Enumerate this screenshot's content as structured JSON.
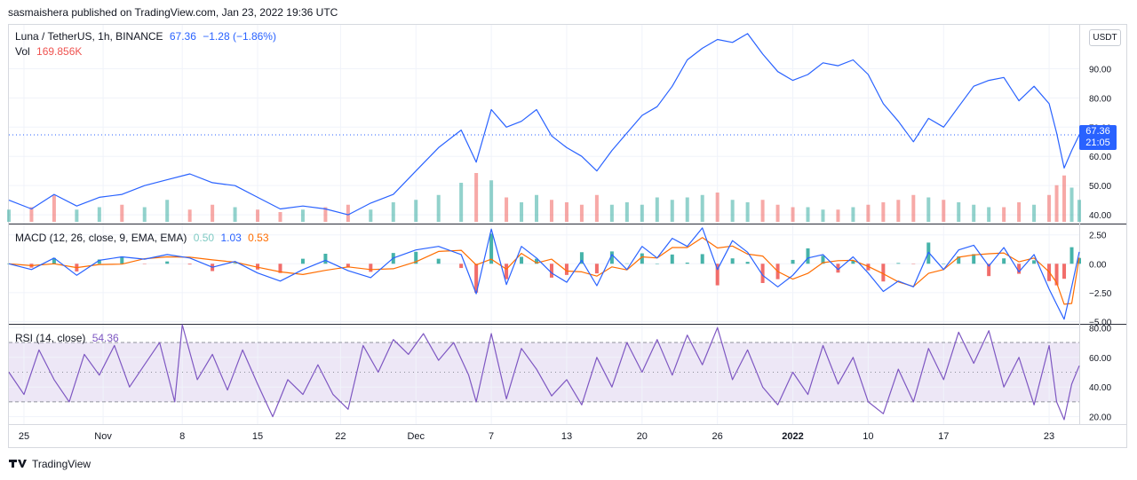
{
  "header": {
    "publish_line": "sasmaishera published on TradingView.com, Jan 23, 2022 19:36 UTC"
  },
  "price_legend": {
    "symbol": "Luna / TetherUS, 1h, BINANCE",
    "last": "67.36",
    "change": "−1.28 (−1.86%)"
  },
  "vol_legend": {
    "label": "Vol",
    "value": "169.856K"
  },
  "macd_legend": {
    "label": "MACD (12, 26, close, 9, EMA, EMA)",
    "hist": "0.50",
    "macd": "1.03",
    "signal": "0.53"
  },
  "rsi_legend": {
    "label": "RSI (14, close)",
    "value": "54.36"
  },
  "currency_button": "USDT",
  "price_tag": {
    "price": "67.36",
    "countdown": "21:05"
  },
  "footer": {
    "logo_icon": "tradingview-logo-icon",
    "brand": "TradingView"
  },
  "colors": {
    "price_line": "#2962ff",
    "macd_line": "#2962ff",
    "signal_line": "#ff6d00",
    "rsi_line": "#7e57c2",
    "up": "#26a69a",
    "down": "#ef5350",
    "rsi_band": "#ede7f6"
  },
  "chart_data": {
    "type": "line",
    "title": "Luna / TetherUS, 1h, BINANCE",
    "x_ticks": [
      "25",
      "Nov",
      "8",
      "15",
      "22",
      "Dec",
      "7",
      "13",
      "20",
      "26",
      "2022",
      "10",
      "17",
      "23"
    ],
    "price": {
      "y_ticks": [
        "90.00",
        "80.00",
        "70.00",
        "60.00",
        "50.00",
        "40.00"
      ],
      "ylim": [
        37,
        105
      ],
      "last": 67.36,
      "series": [
        {
          "x": 0,
          "y": 45
        },
        {
          "x": 3,
          "y": 42
        },
        {
          "x": 6,
          "y": 47
        },
        {
          "x": 9,
          "y": 43
        },
        {
          "x": 12,
          "y": 46
        },
        {
          "x": 15,
          "y": 47
        },
        {
          "x": 18,
          "y": 50
        },
        {
          "x": 21,
          "y": 52
        },
        {
          "x": 24,
          "y": 54
        },
        {
          "x": 27,
          "y": 51
        },
        {
          "x": 30,
          "y": 50
        },
        {
          "x": 33,
          "y": 46
        },
        {
          "x": 36,
          "y": 42
        },
        {
          "x": 39,
          "y": 43
        },
        {
          "x": 42,
          "y": 42
        },
        {
          "x": 45,
          "y": 40
        },
        {
          "x": 48,
          "y": 44
        },
        {
          "x": 51,
          "y": 47
        },
        {
          "x": 54,
          "y": 55
        },
        {
          "x": 57,
          "y": 63
        },
        {
          "x": 60,
          "y": 69
        },
        {
          "x": 62,
          "y": 58
        },
        {
          "x": 64,
          "y": 76
        },
        {
          "x": 66,
          "y": 70
        },
        {
          "x": 68,
          "y": 72
        },
        {
          "x": 70,
          "y": 76
        },
        {
          "x": 72,
          "y": 67
        },
        {
          "x": 74,
          "y": 63
        },
        {
          "x": 76,
          "y": 60
        },
        {
          "x": 78,
          "y": 55
        },
        {
          "x": 80,
          "y": 62
        },
        {
          "x": 82,
          "y": 68
        },
        {
          "x": 84,
          "y": 74
        },
        {
          "x": 86,
          "y": 77
        },
        {
          "x": 88,
          "y": 84
        },
        {
          "x": 90,
          "y": 93
        },
        {
          "x": 92,
          "y": 97
        },
        {
          "x": 94,
          "y": 100
        },
        {
          "x": 96,
          "y": 99
        },
        {
          "x": 98,
          "y": 102
        },
        {
          "x": 100,
          "y": 95
        },
        {
          "x": 102,
          "y": 89
        },
        {
          "x": 104,
          "y": 86
        },
        {
          "x": 106,
          "y": 88
        },
        {
          "x": 108,
          "y": 92
        },
        {
          "x": 110,
          "y": 91
        },
        {
          "x": 112,
          "y": 93
        },
        {
          "x": 114,
          "y": 88
        },
        {
          "x": 116,
          "y": 78
        },
        {
          "x": 118,
          "y": 72
        },
        {
          "x": 120,
          "y": 65
        },
        {
          "x": 122,
          "y": 73
        },
        {
          "x": 124,
          "y": 70
        },
        {
          "x": 126,
          "y": 77
        },
        {
          "x": 128,
          "y": 84
        },
        {
          "x": 130,
          "y": 86
        },
        {
          "x": 132,
          "y": 87
        },
        {
          "x": 134,
          "y": 79
        },
        {
          "x": 136,
          "y": 84
        },
        {
          "x": 138,
          "y": 78
        },
        {
          "x": 139,
          "y": 68
        },
        {
          "x": 140,
          "y": 56
        },
        {
          "x": 141,
          "y": 62
        },
        {
          "x": 142,
          "y": 67.36
        }
      ]
    },
    "volume": {
      "last": "169.856K",
      "bars": [
        {
          "x": 0,
          "v": 0.25,
          "dir": "up"
        },
        {
          "x": 3,
          "v": 0.3,
          "dir": "down"
        },
        {
          "x": 6,
          "v": 0.55,
          "dir": "down"
        },
        {
          "x": 9,
          "v": 0.25,
          "dir": "up"
        },
        {
          "x": 12,
          "v": 0.3,
          "dir": "up"
        },
        {
          "x": 15,
          "v": 0.35,
          "dir": "down"
        },
        {
          "x": 18,
          "v": 0.3,
          "dir": "up"
        },
        {
          "x": 21,
          "v": 0.45,
          "dir": "up"
        },
        {
          "x": 24,
          "v": 0.25,
          "dir": "down"
        },
        {
          "x": 27,
          "v": 0.35,
          "dir": "down"
        },
        {
          "x": 30,
          "v": 0.3,
          "dir": "up"
        },
        {
          "x": 33,
          "v": 0.25,
          "dir": "down"
        },
        {
          "x": 36,
          "v": 0.2,
          "dir": "down"
        },
        {
          "x": 39,
          "v": 0.25,
          "dir": "up"
        },
        {
          "x": 42,
          "v": 0.3,
          "dir": "down"
        },
        {
          "x": 45,
          "v": 0.35,
          "dir": "down"
        },
        {
          "x": 48,
          "v": 0.25,
          "dir": "up"
        },
        {
          "x": 51,
          "v": 0.4,
          "dir": "up"
        },
        {
          "x": 54,
          "v": 0.45,
          "dir": "up"
        },
        {
          "x": 57,
          "v": 0.55,
          "dir": "up"
        },
        {
          "x": 60,
          "v": 0.8,
          "dir": "up"
        },
        {
          "x": 62,
          "v": 1.0,
          "dir": "down"
        },
        {
          "x": 64,
          "v": 0.85,
          "dir": "up"
        },
        {
          "x": 66,
          "v": 0.5,
          "dir": "down"
        },
        {
          "x": 68,
          "v": 0.4,
          "dir": "up"
        },
        {
          "x": 70,
          "v": 0.55,
          "dir": "up"
        },
        {
          "x": 72,
          "v": 0.45,
          "dir": "down"
        },
        {
          "x": 74,
          "v": 0.4,
          "dir": "down"
        },
        {
          "x": 76,
          "v": 0.35,
          "dir": "down"
        },
        {
          "x": 78,
          "v": 0.55,
          "dir": "down"
        },
        {
          "x": 80,
          "v": 0.35,
          "dir": "up"
        },
        {
          "x": 82,
          "v": 0.4,
          "dir": "up"
        },
        {
          "x": 84,
          "v": 0.35,
          "dir": "up"
        },
        {
          "x": 86,
          "v": 0.5,
          "dir": "up"
        },
        {
          "x": 88,
          "v": 0.45,
          "dir": "up"
        },
        {
          "x": 90,
          "v": 0.5,
          "dir": "up"
        },
        {
          "x": 92,
          "v": 0.55,
          "dir": "up"
        },
        {
          "x": 94,
          "v": 0.6,
          "dir": "down"
        },
        {
          "x": 96,
          "v": 0.45,
          "dir": "up"
        },
        {
          "x": 98,
          "v": 0.4,
          "dir": "up"
        },
        {
          "x": 100,
          "v": 0.45,
          "dir": "down"
        },
        {
          "x": 102,
          "v": 0.35,
          "dir": "down"
        },
        {
          "x": 104,
          "v": 0.3,
          "dir": "down"
        },
        {
          "x": 106,
          "v": 0.3,
          "dir": "up"
        },
        {
          "x": 108,
          "v": 0.25,
          "dir": "up"
        },
        {
          "x": 110,
          "v": 0.25,
          "dir": "down"
        },
        {
          "x": 112,
          "v": 0.3,
          "dir": "up"
        },
        {
          "x": 114,
          "v": 0.35,
          "dir": "down"
        },
        {
          "x": 116,
          "v": 0.4,
          "dir": "down"
        },
        {
          "x": 118,
          "v": 0.45,
          "dir": "down"
        },
        {
          "x": 120,
          "v": 0.55,
          "dir": "down"
        },
        {
          "x": 122,
          "v": 0.5,
          "dir": "up"
        },
        {
          "x": 124,
          "v": 0.45,
          "dir": "down"
        },
        {
          "x": 126,
          "v": 0.4,
          "dir": "up"
        },
        {
          "x": 128,
          "v": 0.35,
          "dir": "up"
        },
        {
          "x": 130,
          "v": 0.3,
          "dir": "up"
        },
        {
          "x": 132,
          "v": 0.3,
          "dir": "down"
        },
        {
          "x": 134,
          "v": 0.4,
          "dir": "down"
        },
        {
          "x": 136,
          "v": 0.35,
          "dir": "up"
        },
        {
          "x": 138,
          "v": 0.55,
          "dir": "down"
        },
        {
          "x": 139,
          "v": 0.75,
          "dir": "down"
        },
        {
          "x": 140,
          "v": 0.95,
          "dir": "down"
        },
        {
          "x": 141,
          "v": 0.7,
          "dir": "up"
        },
        {
          "x": 142,
          "v": 0.45,
          "dir": "up"
        }
      ]
    },
    "macd": {
      "y_ticks": [
        "2.50",
        "0.00",
        "−2.50",
        "−5.00"
      ],
      "ylim": [
        -5.2,
        3.4
      ],
      "hist": 0.5,
      "macd_last": 1.03,
      "signal_last": 0.53,
      "macd_line": [
        {
          "x": 0,
          "y": 0.0
        },
        {
          "x": 3,
          "y": -0.5
        },
        {
          "x": 6,
          "y": 0.5
        },
        {
          "x": 9,
          "y": -1.0
        },
        {
          "x": 12,
          "y": 0.3
        },
        {
          "x": 15,
          "y": 0.6
        },
        {
          "x": 18,
          "y": 0.4
        },
        {
          "x": 21,
          "y": 0.8
        },
        {
          "x": 24,
          "y": 0.5
        },
        {
          "x": 27,
          "y": -0.3
        },
        {
          "x": 30,
          "y": 0.2
        },
        {
          "x": 33,
          "y": -0.8
        },
        {
          "x": 36,
          "y": -1.5
        },
        {
          "x": 39,
          "y": -0.5
        },
        {
          "x": 42,
          "y": 0.3
        },
        {
          "x": 45,
          "y": -0.6
        },
        {
          "x": 48,
          "y": -1.2
        },
        {
          "x": 51,
          "y": 0.5
        },
        {
          "x": 54,
          "y": 1.2
        },
        {
          "x": 57,
          "y": 1.5
        },
        {
          "x": 60,
          "y": 0.8
        },
        {
          "x": 62,
          "y": -2.6
        },
        {
          "x": 64,
          "y": 3.0
        },
        {
          "x": 66,
          "y": -1.8
        },
        {
          "x": 68,
          "y": 1.5
        },
        {
          "x": 70,
          "y": 0.5
        },
        {
          "x": 72,
          "y": -0.8
        },
        {
          "x": 74,
          "y": -1.6
        },
        {
          "x": 76,
          "y": 0.3
        },
        {
          "x": 78,
          "y": -1.9
        },
        {
          "x": 80,
          "y": 0.8
        },
        {
          "x": 82,
          "y": -0.5
        },
        {
          "x": 84,
          "y": 1.5
        },
        {
          "x": 86,
          "y": 0.5
        },
        {
          "x": 88,
          "y": 2.2
        },
        {
          "x": 90,
          "y": 1.5
        },
        {
          "x": 92,
          "y": 3.1
        },
        {
          "x": 94,
          "y": -0.5
        },
        {
          "x": 96,
          "y": 2.0
        },
        {
          "x": 98,
          "y": 1.0
        },
        {
          "x": 100,
          "y": -1.0
        },
        {
          "x": 102,
          "y": -2.0
        },
        {
          "x": 104,
          "y": -1.0
        },
        {
          "x": 106,
          "y": 0.5
        },
        {
          "x": 108,
          "y": 0.8
        },
        {
          "x": 110,
          "y": -0.5
        },
        {
          "x": 112,
          "y": 0.6
        },
        {
          "x": 114,
          "y": -0.8
        },
        {
          "x": 116,
          "y": -2.4
        },
        {
          "x": 118,
          "y": -1.5
        },
        {
          "x": 120,
          "y": -2.0
        },
        {
          "x": 122,
          "y": 1.0
        },
        {
          "x": 124,
          "y": -0.5
        },
        {
          "x": 126,
          "y": 1.2
        },
        {
          "x": 128,
          "y": 1.6
        },
        {
          "x": 130,
          "y": -0.2
        },
        {
          "x": 132,
          "y": 1.4
        },
        {
          "x": 134,
          "y": -0.7
        },
        {
          "x": 136,
          "y": 0.8
        },
        {
          "x": 138,
          "y": -2.2
        },
        {
          "x": 139,
          "y": -3.5
        },
        {
          "x": 140,
          "y": -4.8
        },
        {
          "x": 141,
          "y": -2.0
        },
        {
          "x": 142,
          "y": 1.03
        }
      ]
    },
    "rsi": {
      "y_ticks": [
        "80.00",
        "60.00",
        "40.00",
        "20.00"
      ],
      "ylim": [
        15,
        82
      ],
      "band": [
        30,
        70
      ],
      "last": 54.36,
      "line": [
        {
          "x": 0,
          "y": 50
        },
        {
          "x": 2,
          "y": 35
        },
        {
          "x": 4,
          "y": 65
        },
        {
          "x": 6,
          "y": 45
        },
        {
          "x": 8,
          "y": 30
        },
        {
          "x": 10,
          "y": 62
        },
        {
          "x": 12,
          "y": 48
        },
        {
          "x": 14,
          "y": 68
        },
        {
          "x": 16,
          "y": 40
        },
        {
          "x": 18,
          "y": 55
        },
        {
          "x": 20,
          "y": 70
        },
        {
          "x": 22,
          "y": 30
        },
        {
          "x": 23,
          "y": 82
        },
        {
          "x": 25,
          "y": 45
        },
        {
          "x": 27,
          "y": 62
        },
        {
          "x": 29,
          "y": 38
        },
        {
          "x": 31,
          "y": 65
        },
        {
          "x": 33,
          "y": 42
        },
        {
          "x": 35,
          "y": 20
        },
        {
          "x": 37,
          "y": 45
        },
        {
          "x": 39,
          "y": 35
        },
        {
          "x": 41,
          "y": 55
        },
        {
          "x": 43,
          "y": 35
        },
        {
          "x": 45,
          "y": 25
        },
        {
          "x": 47,
          "y": 68
        },
        {
          "x": 49,
          "y": 50
        },
        {
          "x": 51,
          "y": 72
        },
        {
          "x": 53,
          "y": 62
        },
        {
          "x": 55,
          "y": 76
        },
        {
          "x": 57,
          "y": 58
        },
        {
          "x": 59,
          "y": 70
        },
        {
          "x": 61,
          "y": 48
        },
        {
          "x": 62,
          "y": 30
        },
        {
          "x": 64,
          "y": 76
        },
        {
          "x": 66,
          "y": 32
        },
        {
          "x": 68,
          "y": 66
        },
        {
          "x": 70,
          "y": 52
        },
        {
          "x": 72,
          "y": 34
        },
        {
          "x": 74,
          "y": 45
        },
        {
          "x": 76,
          "y": 28
        },
        {
          "x": 78,
          "y": 60
        },
        {
          "x": 80,
          "y": 40
        },
        {
          "x": 82,
          "y": 70
        },
        {
          "x": 84,
          "y": 50
        },
        {
          "x": 86,
          "y": 72
        },
        {
          "x": 88,
          "y": 48
        },
        {
          "x": 90,
          "y": 75
        },
        {
          "x": 92,
          "y": 55
        },
        {
          "x": 94,
          "y": 80
        },
        {
          "x": 96,
          "y": 45
        },
        {
          "x": 98,
          "y": 65
        },
        {
          "x": 100,
          "y": 40
        },
        {
          "x": 102,
          "y": 28
        },
        {
          "x": 104,
          "y": 50
        },
        {
          "x": 106,
          "y": 35
        },
        {
          "x": 108,
          "y": 68
        },
        {
          "x": 110,
          "y": 42
        },
        {
          "x": 112,
          "y": 60
        },
        {
          "x": 114,
          "y": 30
        },
        {
          "x": 116,
          "y": 22
        },
        {
          "x": 118,
          "y": 52
        },
        {
          "x": 120,
          "y": 30
        },
        {
          "x": 122,
          "y": 66
        },
        {
          "x": 124,
          "y": 45
        },
        {
          "x": 126,
          "y": 77
        },
        {
          "x": 128,
          "y": 56
        },
        {
          "x": 130,
          "y": 78
        },
        {
          "x": 132,
          "y": 40
        },
        {
          "x": 134,
          "y": 60
        },
        {
          "x": 136,
          "y": 28
        },
        {
          "x": 138,
          "y": 68
        },
        {
          "x": 139,
          "y": 30
        },
        {
          "x": 140,
          "y": 18
        },
        {
          "x": 141,
          "y": 42
        },
        {
          "x": 142,
          "y": 54.36
        }
      ]
    }
  }
}
